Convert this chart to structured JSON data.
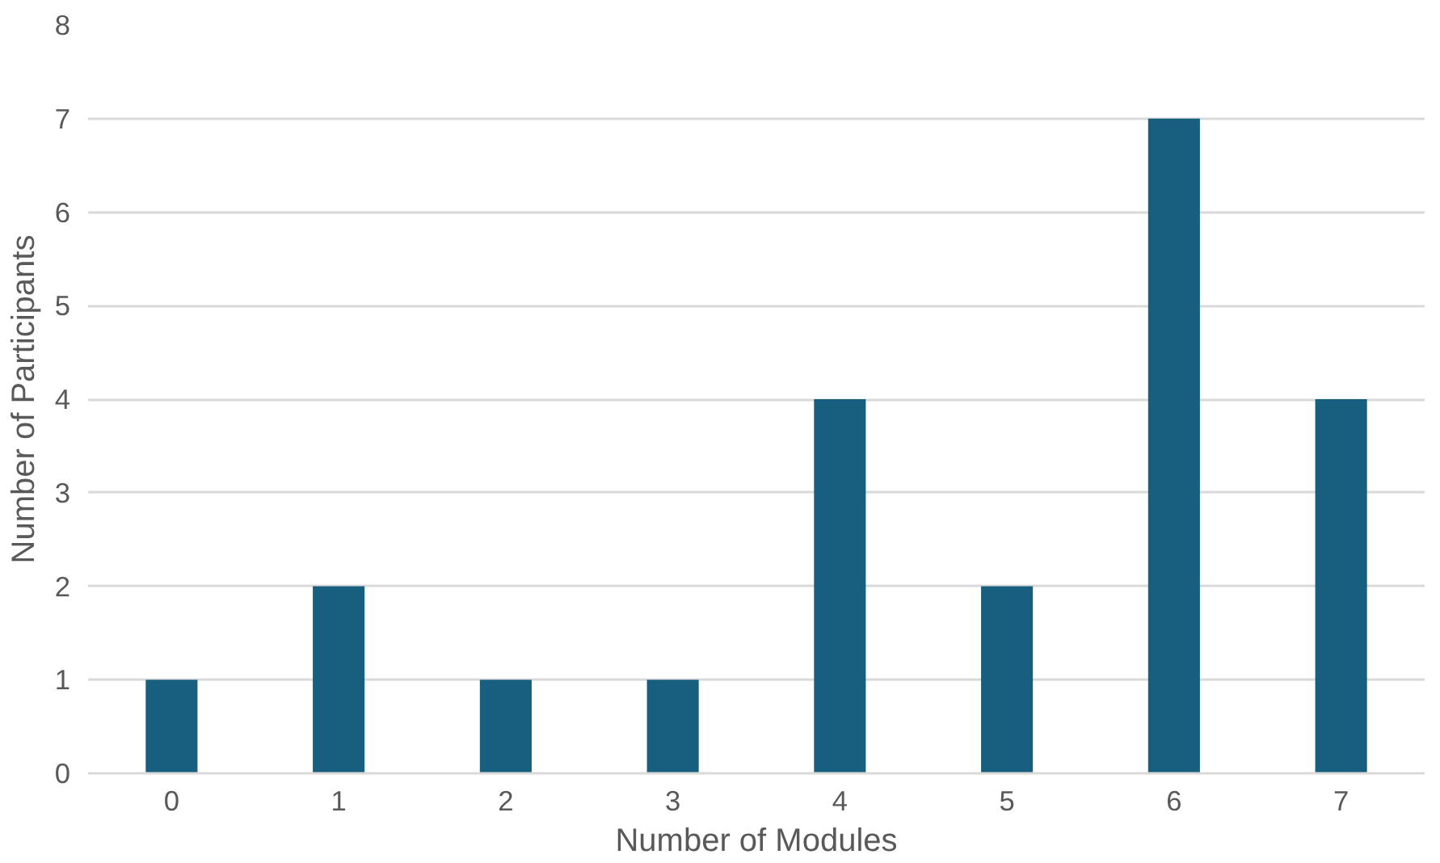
{
  "chart_data": {
    "type": "bar",
    "xlabel": "Number of Modules",
    "ylabel": "Number of Participants",
    "categories": [
      "0",
      "1",
      "2",
      "3",
      "4",
      "5",
      "6",
      "7"
    ],
    "values": [
      1,
      2,
      1,
      1,
      4,
      2,
      7,
      4
    ],
    "color": "#185f7f",
    "ylim": [
      0,
      8
    ],
    "yticks": [
      0,
      1,
      2,
      3,
      4,
      5,
      6,
      7,
      8
    ],
    "grid": "y"
  }
}
